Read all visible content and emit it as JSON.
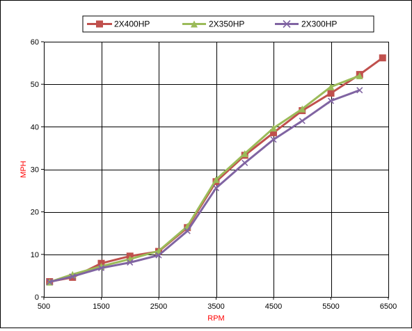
{
  "chart_data": {
    "type": "line",
    "title": "",
    "xlabel": "RPM",
    "ylabel": "MPH",
    "xlim": [
      500,
      6500
    ],
    "ylim": [
      0,
      60
    ],
    "xticks": [
      500,
      1500,
      2500,
      3500,
      4500,
      5500,
      6500
    ],
    "yticks": [
      0,
      10,
      20,
      30,
      40,
      50,
      60
    ],
    "grid": true,
    "legend_position": "top",
    "axis_label_color": "#ff0000",
    "series": [
      {
        "name": "2X400HP",
        "color": "#c0504d",
        "marker": "square",
        "x": [
          600,
          1000,
          1500,
          2000,
          2500,
          3000,
          3500,
          4000,
          4500,
          5000,
          5500,
          6000,
          6400
        ],
        "y": [
          3.6,
          4.6,
          7.9,
          9.6,
          10.7,
          16.3,
          27.1,
          33.3,
          38.6,
          43.8,
          47.9,
          52.3,
          56.2
        ]
      },
      {
        "name": "2X350HP",
        "color": "#9bbb59",
        "marker": "triangle",
        "x": [
          600,
          1000,
          1500,
          2000,
          2500,
          3000,
          3500,
          4000,
          4500,
          5000,
          5500,
          6000
        ],
        "y": [
          3.5,
          5.3,
          7.2,
          8.9,
          10.8,
          16.6,
          27.6,
          33.7,
          39.7,
          44.2,
          49.4,
          52.0
        ]
      },
      {
        "name": "2X300HP",
        "color": "#8064a2",
        "marker": "x",
        "x": [
          600,
          1000,
          1500,
          2000,
          2500,
          3000,
          3500,
          4000,
          4500,
          5000,
          5500,
          6000
        ],
        "y": [
          3.5,
          4.8,
          6.8,
          8.1,
          9.8,
          15.5,
          25.6,
          31.5,
          37.0,
          41.4,
          46.1,
          48.6
        ]
      }
    ]
  }
}
